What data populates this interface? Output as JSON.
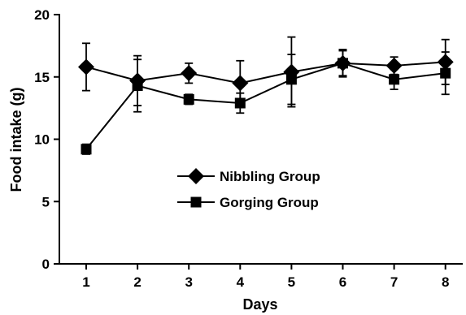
{
  "chart_data": {
    "type": "line",
    "title": "",
    "xlabel": "Days",
    "ylabel": "Food intake (g)",
    "x": [
      1,
      2,
      3,
      4,
      5,
      6,
      7,
      8
    ],
    "x_tick_labels": [
      "1",
      "2",
      "3",
      "4",
      "5",
      "6",
      "7",
      "8"
    ],
    "y_tick_labels": [
      "0",
      "5",
      "10",
      "15",
      "20"
    ],
    "ylim": [
      0,
      20
    ],
    "xlim": [
      0.4,
      8.5
    ],
    "grid": false,
    "legend_position": "center",
    "series": [
      {
        "name": "Nibbling Group",
        "marker": "diamond",
        "values": [
          15.8,
          14.7,
          15.3,
          14.5,
          15.4,
          16.1,
          15.9,
          16.2
        ],
        "errors": [
          1.9,
          2.0,
          0.8,
          1.8,
          2.8,
          1.0,
          0.7,
          1.8
        ]
      },
      {
        "name": "Gorging Group",
        "marker": "square",
        "values": [
          9.2,
          14.3,
          13.2,
          12.9,
          14.8,
          16.1,
          14.8,
          15.3
        ],
        "errors": [
          0.4,
          2.1,
          0.4,
          0.8,
          2.0,
          1.1,
          0.8,
          1.7
        ]
      }
    ],
    "colors": {
      "line": "#000000",
      "marker": "#000000"
    }
  }
}
